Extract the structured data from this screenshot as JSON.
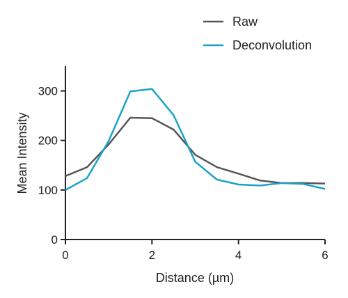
{
  "chart_data": {
    "type": "line",
    "xlabel": "Distance (µm)",
    "ylabel": "Mean Intensity",
    "xlim": [
      0,
      6
    ],
    "ylim": [
      0,
      350
    ],
    "x_ticks": [
      0,
      2,
      4,
      6
    ],
    "y_ticks": [
      0,
      100,
      200,
      300
    ],
    "grid": false,
    "legend_position": "top-right",
    "series": [
      {
        "name": "Raw",
        "color": "#555555",
        "x": [
          0,
          0.5,
          1,
          1.5,
          2,
          2.5,
          3,
          3.5,
          4,
          4.5,
          5,
          5.5,
          6
        ],
        "y": [
          128,
          146,
          192,
          246,
          245,
          222,
          171,
          146,
          133,
          119,
          114,
          114,
          113
        ]
      },
      {
        "name": "Deconvolution",
        "color": "#1aa3c7",
        "x": [
          0,
          0.5,
          1,
          1.5,
          2,
          2.5,
          3,
          3.5,
          4,
          4.5,
          5,
          5.5,
          6
        ],
        "y": [
          100,
          124,
          199,
          299,
          304,
          251,
          157,
          121,
          111,
          109,
          114,
          112,
          102
        ]
      }
    ]
  }
}
